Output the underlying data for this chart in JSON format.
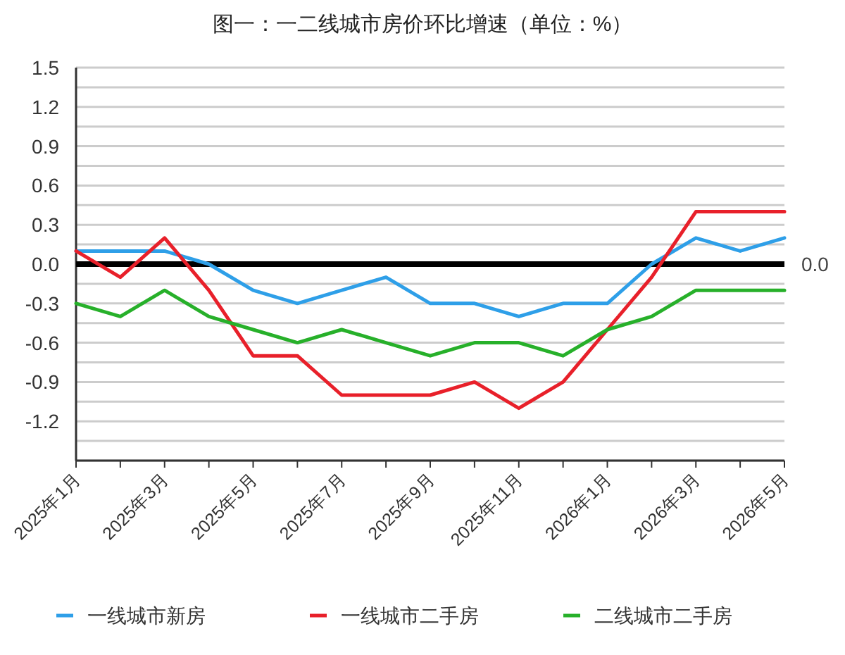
{
  "chart_data": {
    "type": "line",
    "title": "图一：一二线城市房价环比增速（单位：%）",
    "categories": [
      "2025年1月",
      null,
      "2025年3月",
      null,
      "2025年5月",
      null,
      "2025年7月",
      null,
      "2025年9月",
      null,
      "2025年11月",
      null,
      "2026年1月",
      null,
      "2026年3月",
      null,
      "2026年5月"
    ],
    "series": [
      {
        "name": "一线城市新房",
        "color": "#2e9fe8",
        "values": [
          0.1,
          0.1,
          0.1,
          0.0,
          -0.2,
          -0.3,
          -0.2,
          -0.1,
          -0.3,
          -0.3,
          -0.4,
          -0.3,
          -0.3,
          0.0,
          0.2,
          0.1,
          0.2
        ]
      },
      {
        "name": "一线城市二手房",
        "color": "#e8202a",
        "values": [
          0.1,
          -0.1,
          0.2,
          -0.2,
          -0.7,
          -0.7,
          -1.0,
          -1.0,
          -1.0,
          -0.9,
          -1.1,
          -0.9,
          -0.5,
          -0.1,
          0.4,
          0.4,
          0.4
        ]
      },
      {
        "name": "二线城市二手房",
        "color": "#27b02a",
        "values": [
          -0.3,
          -0.4,
          -0.2,
          -0.4,
          -0.5,
          -0.6,
          -0.5,
          -0.6,
          -0.7,
          -0.6,
          -0.6,
          -0.7,
          -0.5,
          -0.4,
          -0.2,
          -0.2,
          -0.2
        ]
      }
    ],
    "ylim": [
      -1.5,
      1.5
    ],
    "yticks": [
      {
        "value": -1.5,
        "label": null
      },
      {
        "value": -1.35,
        "label": null
      },
      -1.2,
      {
        "value": -1.05,
        "label": null
      },
      -0.9,
      {
        "value": -0.75,
        "label": null
      },
      -0.6,
      {
        "value": -0.45,
        "label": null
      },
      -0.3,
      {
        "value": -0.15,
        "label": null
      },
      {
        "value": 0,
        "label": "0.0"
      },
      {
        "value": 0.15,
        "label": null
      },
      0.3,
      {
        "value": 0.45,
        "label": null
      },
      0.6,
      {
        "value": 0.75,
        "label": null
      },
      0.9,
      {
        "value": 1.05,
        "label": null
      },
      1.2,
      {
        "value": 1.35,
        "label": null
      },
      1.5
    ],
    "ref_lines": [
      {
        "axis": "y",
        "value": 0,
        "label": "0.0",
        "color": "#000000"
      }
    ],
    "grid": "y",
    "legend": "bottom",
    "marker": "none",
    "line_style": "solid"
  }
}
